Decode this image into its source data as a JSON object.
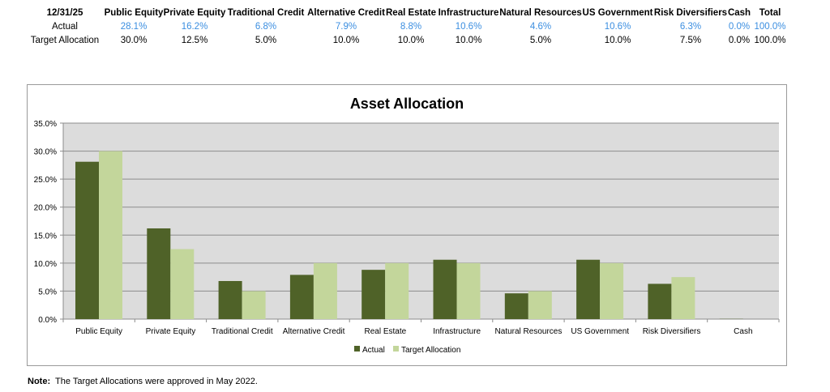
{
  "table": {
    "date_label": "12/31/25",
    "columns": [
      "Public Equity",
      "Private Equity",
      "Traditional Credit",
      "Alternative Credit",
      "Real Estate",
      "Infrastructure",
      "Natural Resources",
      "US Government",
      "Risk Diversifiers",
      "Cash",
      "Total"
    ],
    "rows": [
      {
        "label": "Actual",
        "values": [
          "28.1%",
          "16.2%",
          "6.8%",
          "7.9%",
          "8.8%",
          "10.6%",
          "4.6%",
          "10.6%",
          "6.3%",
          "0.0%",
          "100.0%"
        ]
      },
      {
        "label": "Target Allocation",
        "values": [
          "30.0%",
          "12.5%",
          "5.0%",
          "10.0%",
          "10.0%",
          "10.0%",
          "5.0%",
          "10.0%",
          "7.5%",
          "0.0%",
          "100.0%"
        ]
      }
    ],
    "actual_color": "#3b8ee0"
  },
  "chart_data": {
    "type": "bar",
    "title": "Asset Allocation",
    "categories": [
      "Public Equity",
      "Private Equity",
      "Traditional Credit",
      "Alternative Credit",
      "Real Estate",
      "Infrastructure",
      "Natural Resources",
      "US Government",
      "Risk Diversifiers",
      "Cash"
    ],
    "series": [
      {
        "name": "Actual",
        "values": [
          28.1,
          16.2,
          6.8,
          7.9,
          8.8,
          10.6,
          4.6,
          10.6,
          6.3,
          0.04
        ],
        "color": "#4f6228"
      },
      {
        "name": "Target Allocation",
        "values": [
          30.0,
          12.5,
          5.0,
          10.0,
          10.0,
          10.0,
          5.0,
          10.0,
          7.5,
          0.0
        ],
        "color": "#c3d69b"
      }
    ],
    "ylim": [
      0,
      35
    ],
    "yticks": [
      "0.0%",
      "5.0%",
      "10.0%",
      "15.0%",
      "20.0%",
      "25.0%",
      "30.0%",
      "35.0%"
    ],
    "grid": true,
    "plot_background": "#dcdcdc",
    "legend": "bottom"
  },
  "note": {
    "label": "Note:",
    "text": "The Target Allocations were approved in May 2022."
  }
}
